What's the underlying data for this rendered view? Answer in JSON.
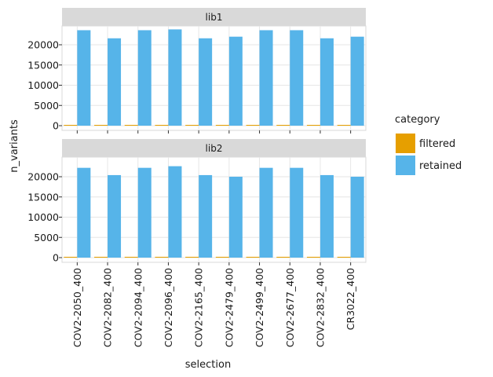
{
  "chart_data": {
    "type": "bar",
    "xlabel": "selection",
    "ylabel": "n_variants",
    "categories": [
      "COV2-2050_400",
      "COV2-2082_400",
      "COV2-2094_400",
      "COV2-2096_400",
      "COV2-2165_400",
      "COV2-2479_400",
      "COV2-2499_400",
      "COV2-2677_400",
      "COV2-2832_400",
      "CR3022_400"
    ],
    "y_ticks": [
      0,
      5000,
      10000,
      15000,
      20000
    ],
    "ylim": [
      0,
      24500
    ],
    "grid": true,
    "legend": {
      "title": "category",
      "position": "right",
      "entries": [
        {
          "name": "filtered",
          "color": "#E69F00"
        },
        {
          "name": "retained",
          "color": "#56B4E9"
        }
      ]
    },
    "panels": [
      {
        "title": "lib1",
        "series": [
          {
            "name": "filtered",
            "color": "#E69F00",
            "values": [
              40,
              40,
              40,
              40,
              40,
              40,
              40,
              40,
              40,
              40
            ]
          },
          {
            "name": "retained",
            "color": "#56B4E9",
            "values": [
              23600,
              21600,
              23600,
              23800,
              21600,
              22000,
              23600,
              23600,
              21600,
              22000
            ]
          }
        ]
      },
      {
        "title": "lib2",
        "series": [
          {
            "name": "filtered",
            "color": "#E69F00",
            "values": [
              200,
              200,
              200,
              200,
              200,
              200,
              200,
              200,
              200,
              200
            ]
          },
          {
            "name": "retained",
            "color": "#56B4E9",
            "values": [
              22200,
              20400,
              22200,
              22600,
              20400,
              20000,
              22200,
              22200,
              20400,
              20000
            ]
          }
        ]
      }
    ]
  }
}
